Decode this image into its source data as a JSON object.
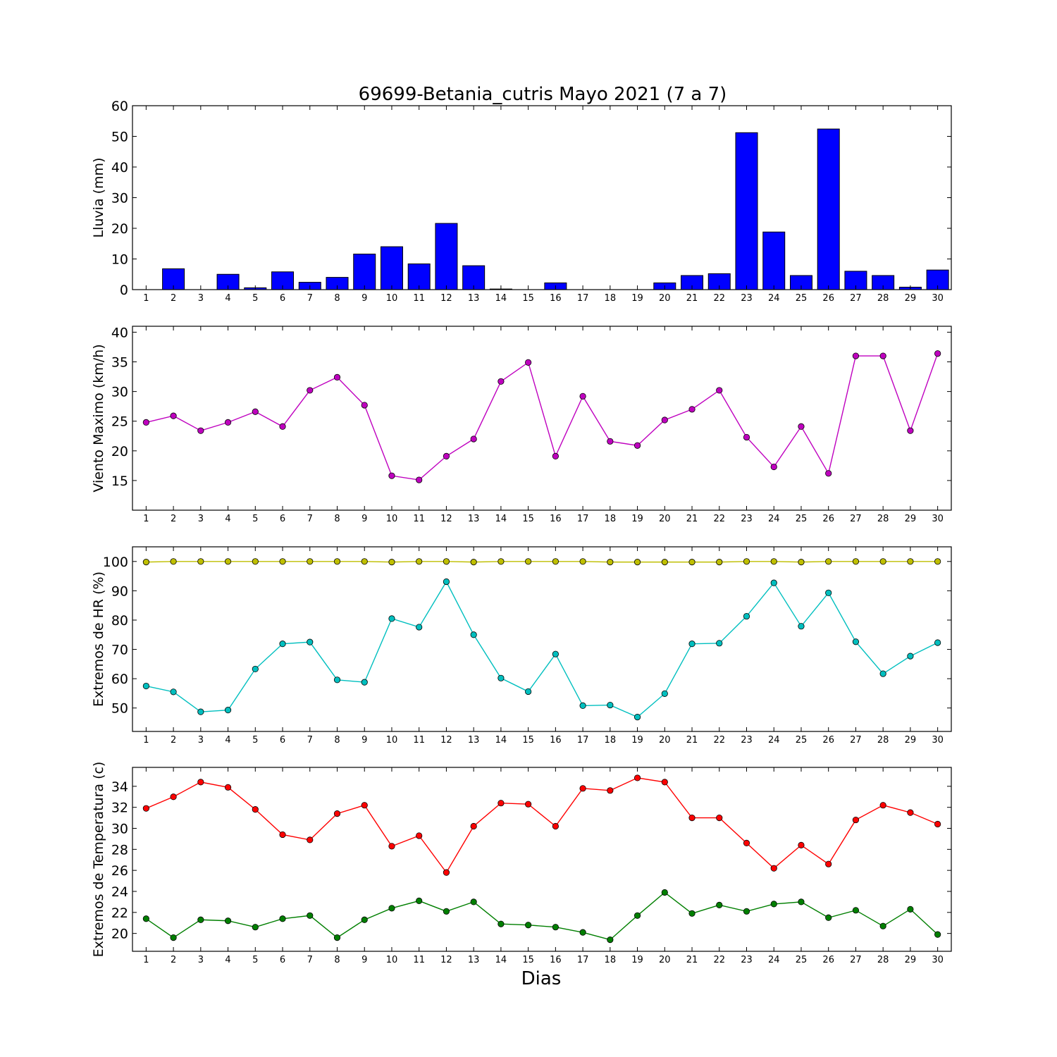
{
  "title": "69699-Betania_cutris Mayo 2021  (7 a 7)",
  "xlabel": "Dias",
  "chart_data": [
    {
      "type": "bar",
      "ylabel": "Lluvia (mm)",
      "x": [
        1,
        2,
        3,
        4,
        5,
        6,
        7,
        8,
        9,
        10,
        11,
        12,
        13,
        14,
        15,
        16,
        17,
        18,
        19,
        20,
        21,
        22,
        23,
        24,
        25,
        26,
        27,
        28,
        29,
        30
      ],
      "ylim": [
        0,
        60
      ],
      "yticks": [
        0,
        10,
        20,
        30,
        40,
        50,
        60
      ],
      "series": [
        {
          "color": "#0000ff",
          "values": [
            0,
            6.8,
            0,
            5.0,
            0.6,
            5.8,
            2.4,
            4.0,
            11.6,
            14.0,
            8.4,
            21.6,
            7.8,
            0.2,
            0,
            2.2,
            0,
            0,
            0,
            2.2,
            4.6,
            5.2,
            51.2,
            18.8,
            4.6,
            52.4,
            6.0,
            4.6,
            0.8,
            6.4
          ]
        }
      ]
    },
    {
      "type": "line",
      "ylabel": "Viento Maximo (km/h)",
      "x": [
        1,
        2,
        3,
        4,
        5,
        6,
        7,
        8,
        9,
        10,
        11,
        12,
        13,
        14,
        15,
        16,
        17,
        18,
        19,
        20,
        21,
        22,
        23,
        24,
        25,
        26,
        27,
        28,
        29,
        30
      ],
      "ylim": [
        10,
        41
      ],
      "yticks": [
        15,
        20,
        25,
        30,
        35,
        40
      ],
      "series": [
        {
          "color": "#bf00bf",
          "values": [
            24.8,
            25.9,
            23.4,
            24.8,
            26.6,
            24.1,
            30.2,
            32.4,
            27.7,
            15.8,
            15.1,
            19.1,
            22.0,
            31.7,
            34.9,
            19.1,
            29.2,
            21.6,
            20.9,
            25.2,
            27.0,
            30.2,
            22.3,
            17.3,
            24.1,
            16.2,
            36.0,
            36.0,
            23.4,
            36.4
          ]
        }
      ]
    },
    {
      "type": "line",
      "ylabel": "Extremos de HR (%)",
      "x": [
        1,
        2,
        3,
        4,
        5,
        6,
        7,
        8,
        9,
        10,
        11,
        12,
        13,
        14,
        15,
        16,
        17,
        18,
        19,
        20,
        21,
        22,
        23,
        24,
        25,
        26,
        27,
        28,
        29,
        30
      ],
      "ylim": [
        42,
        105
      ],
      "yticks": [
        50,
        60,
        70,
        80,
        90,
        100
      ],
      "series": [
        {
          "color": "#bfbf00",
          "values": [
            99.8,
            100,
            100,
            100,
            100,
            100,
            100,
            100,
            100,
            99.8,
            100,
            100,
            99.8,
            100,
            100,
            100,
            100,
            99.8,
            99.8,
            99.8,
            99.8,
            99.8,
            100,
            100,
            99.8,
            100,
            100,
            100,
            100,
            100
          ]
        },
        {
          "color": "#00bfbf",
          "values": [
            57.5,
            55.5,
            48.7,
            49.3,
            63.3,
            71.9,
            72.5,
            59.6,
            58.8,
            80.5,
            77.6,
            93.1,
            75.0,
            60.2,
            55.6,
            68.4,
            50.8,
            51.0,
            46.9,
            54.9,
            71.9,
            72.1,
            81.3,
            92.7,
            77.9,
            89.3,
            72.6,
            61.7,
            67.7,
            72.3
          ]
        }
      ]
    },
    {
      "type": "line",
      "ylabel": "Extremos de Temperatura (c)",
      "x": [
        1,
        2,
        3,
        4,
        5,
        6,
        7,
        8,
        9,
        10,
        11,
        12,
        13,
        14,
        15,
        16,
        17,
        18,
        19,
        20,
        21,
        22,
        23,
        24,
        25,
        26,
        27,
        28,
        29,
        30
      ],
      "ylim": [
        18.3,
        35.8
      ],
      "yticks": [
        20,
        22,
        24,
        26,
        28,
        30,
        32,
        34
      ],
      "series": [
        {
          "color": "#ff0000",
          "values": [
            31.9,
            33.0,
            34.4,
            33.9,
            31.8,
            29.4,
            28.9,
            31.4,
            32.2,
            28.3,
            29.3,
            25.8,
            30.2,
            32.4,
            32.3,
            30.2,
            33.8,
            33.6,
            34.8,
            34.4,
            31.0,
            31.0,
            28.6,
            26.2,
            28.4,
            26.6,
            30.8,
            32.2,
            31.5,
            30.4
          ]
        },
        {
          "color": "#007f00",
          "values": [
            21.4,
            19.6,
            21.3,
            21.2,
            20.6,
            21.4,
            21.7,
            19.6,
            21.3,
            22.4,
            23.1,
            22.1,
            23.0,
            20.9,
            20.8,
            20.6,
            20.1,
            19.4,
            21.7,
            23.9,
            21.9,
            22.7,
            22.1,
            22.8,
            23.0,
            21.5,
            22.2,
            20.7,
            22.3,
            19.9
          ]
        }
      ]
    }
  ]
}
